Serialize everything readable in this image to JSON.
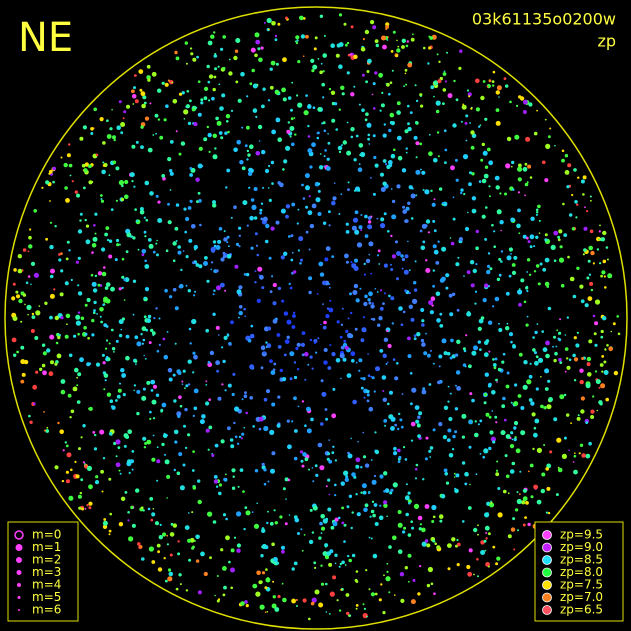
{
  "header": {
    "title": "NE",
    "image_id": "03k61135o0200w",
    "subtitle": "zp"
  },
  "magnitude_legend": [
    "m=0",
    "m=1",
    "m=2",
    "m=3",
    "m=4",
    "m=5",
    "m=6"
  ],
  "zp_legend": [
    {
      "label": "zp=9.5",
      "color": "#ff40ff"
    },
    {
      "label": "zp=9.0",
      "color": "#c020ff"
    },
    {
      "label": "zp=8.5",
      "color": "#20e0ff"
    },
    {
      "label": "zp=8.0",
      "color": "#20ff40"
    },
    {
      "label": "zp=7.5",
      "color": "#ffe000"
    },
    {
      "label": "zp=7.0",
      "color": "#ff8020"
    },
    {
      "label": "zp=6.5",
      "color": "#ff5060"
    }
  ]
}
